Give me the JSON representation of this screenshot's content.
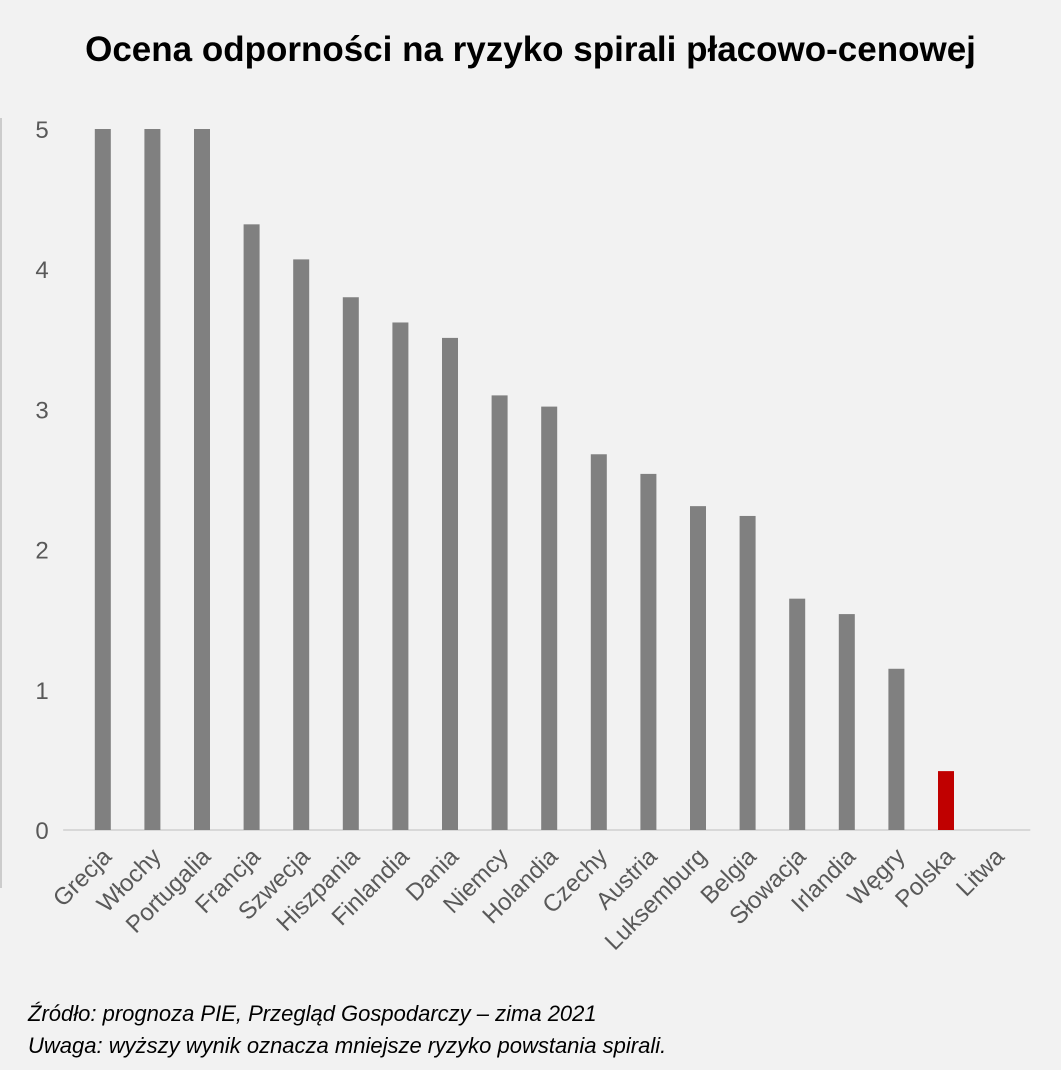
{
  "chart_data": {
    "type": "bar",
    "title": "Ocena odporności na ryzyko spirali płacowo-cenowej",
    "categories": [
      "Grecja",
      "Włochy",
      "Portugalia",
      "Francja",
      "Szwecja",
      "Hiszpania",
      "Finlandia",
      "Dania",
      "Niemcy",
      "Holandia",
      "Czechy",
      "Austria",
      "Luksemburg",
      "Belgia",
      "Słowacja",
      "Irlandia",
      "Węgry",
      "Polska",
      "Litwa"
    ],
    "values": [
      5.0,
      5.0,
      5.0,
      4.32,
      4.07,
      3.8,
      3.62,
      3.51,
      3.1,
      3.02,
      2.68,
      2.54,
      2.31,
      2.24,
      1.65,
      1.54,
      1.15,
      0.42,
      0
    ],
    "highlight": {
      "category": "Polska",
      "color": "#c00000"
    },
    "bar_color": "#808080",
    "ylim": [
      0,
      5
    ],
    "yticks": [
      0,
      1,
      2,
      3,
      4,
      5
    ],
    "xlabel": "",
    "ylabel": "",
    "grid": false
  },
  "notes": {
    "source": "Źródło: prognoza PIE, Przegląd Gospodarczy – zima 2021",
    "remark": "Uwaga: wyższy wynik oznacza mniejsze ryzyko powstania spirali."
  }
}
